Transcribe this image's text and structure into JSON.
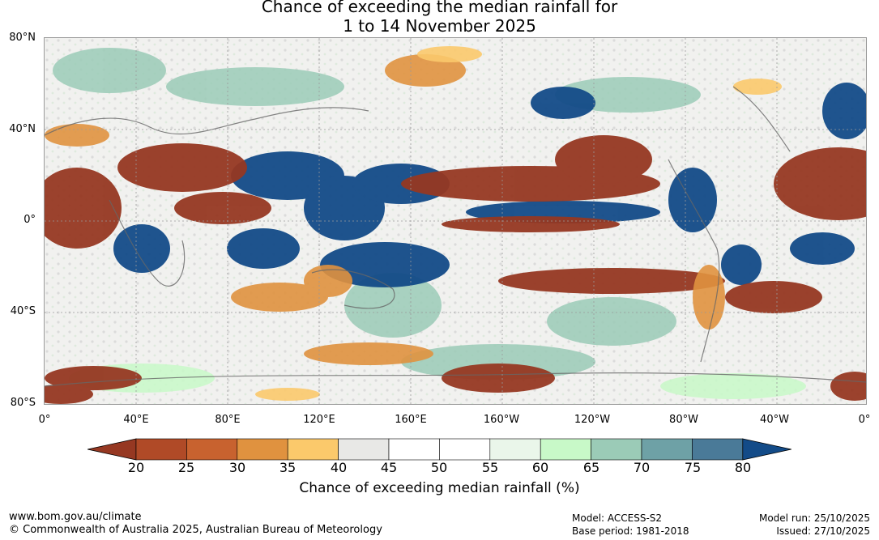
{
  "title": {
    "line1": "Chance of exceeding the median rainfall for",
    "line2": "1 to 14 November 2025"
  },
  "map": {
    "lat_labels": [
      "80°N",
      "40°N",
      "0°",
      "40°S",
      "80°S"
    ],
    "lon_labels": [
      "0°",
      "40°E",
      "80°E",
      "120°E",
      "160°E",
      "160°W",
      "120°W",
      "80°W",
      "40°W",
      "0°"
    ],
    "icon": "world-rainfall-probability-map"
  },
  "colorbar": {
    "ticks": [
      "20",
      "25",
      "30",
      "35",
      "40",
      "45",
      "50",
      "55",
      "60",
      "65",
      "70",
      "75",
      "80"
    ],
    "colors": [
      "#963822",
      "#b04a27",
      "#c8622f",
      "#e0923f",
      "#fbc96b",
      "#e8e8e6",
      "#ffffff",
      "#ffffff",
      "#eaf6ea",
      "#c8f9c8",
      "#9bcbb7",
      "#6ea1a6",
      "#4a7a98",
      "#134b88"
    ],
    "title": "Chance of exceeding median rainfall (%)"
  },
  "footer": {
    "website": "www.bom.gov.au/climate",
    "copyright": "© Commonwealth of Australia 2025, Australian Bureau of Meteorology",
    "model": "Model: ACCESS-S2",
    "base_period": "Base period: 1981-2018",
    "model_run": "Model run: 25/10/2025",
    "issued": "Issued: 27/10/2025"
  }
}
